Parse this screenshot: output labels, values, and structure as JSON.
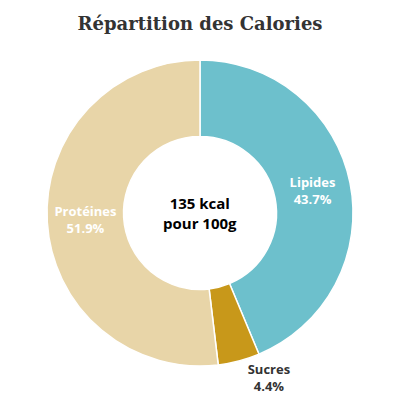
{
  "chart_data": {
    "type": "pie",
    "title": "Répartition des Calories",
    "categories": [
      "Lipides",
      "Sucres",
      "Protéines"
    ],
    "values": [
      43.7,
      4.4,
      51.9
    ],
    "value_labels": [
      "43.7%",
      "4.4%",
      "51.9%"
    ],
    "colors": [
      "#6dc0cc",
      "#c8981a",
      "#e8d5a8"
    ],
    "data_labels": true,
    "annotations": [
      "135 kcal",
      "pour 100g"
    ]
  }
}
